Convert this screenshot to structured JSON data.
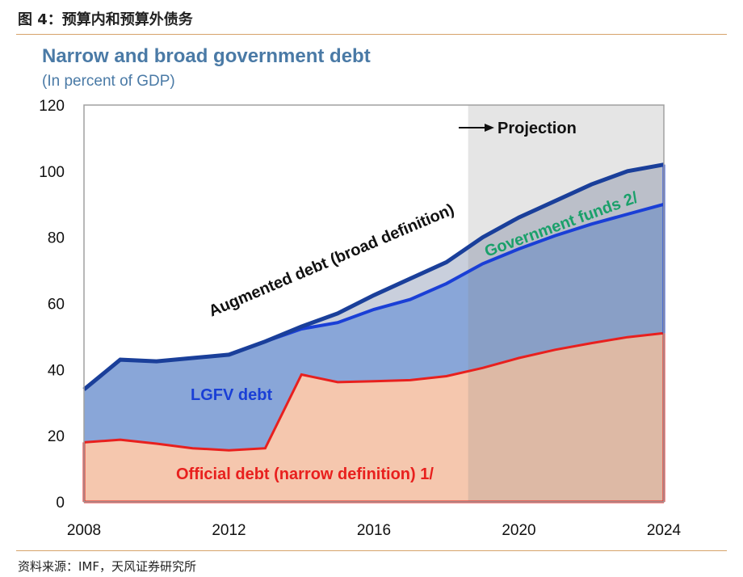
{
  "figure_header": "图 4：预算内和预算外债务",
  "source_note": "资料来源：IMF，天风证券研究所",
  "chart_data": {
    "type": "area",
    "title": "Narrow and broad government debt",
    "subtitle": "(In percent of GDP)",
    "x": [
      2008,
      2009,
      2010,
      2011,
      2012,
      2013,
      2014,
      2015,
      2016,
      2017,
      2018,
      2019,
      2020,
      2021,
      2022,
      2023,
      2024
    ],
    "x_ticks": [
      "2008",
      "2012",
      "2016",
      "2020",
      "2024"
    ],
    "y_ticks": [
      "0",
      "20",
      "40",
      "60",
      "80",
      "100",
      "120"
    ],
    "ylim": [
      0,
      120
    ],
    "xlim": [
      2008,
      2024
    ],
    "projection_start": 2018.6,
    "projection_label": "Projection",
    "series": [
      {
        "name": "Official debt (narrow definition) 1/",
        "color": "#e8201e",
        "fill": "#f5c7ae",
        "values": [
          18,
          18.8,
          17.6,
          16.2,
          15.6,
          16.2,
          38.5,
          36.2,
          36.5,
          36.8,
          38,
          40.5,
          43.5,
          46,
          48,
          49.8,
          51
        ]
      },
      {
        "name": "LGFV debt",
        "color": "#1a3fd6",
        "fill": "#89a6d8",
        "values": [
          34,
          43,
          42.5,
          43.5,
          44.5,
          48.5,
          52.3,
          54.2,
          58.2,
          61.2,
          66,
          72,
          76.5,
          80.5,
          84,
          87,
          90
        ]
      },
      {
        "name": "Government funds 2/",
        "color": "#1aa06a",
        "fill": "#c9cfdc",
        "values": [
          34,
          43,
          42.5,
          43.5,
          44.5,
          48.5,
          53,
          57,
          62.5,
          67.5,
          72.5,
          80,
          86,
          91,
          96,
          100,
          102
        ]
      },
      {
        "name": "Augmented debt  (broad definition)",
        "color": "#1a3f9a",
        "values": [
          34,
          43,
          42.5,
          43.5,
          44.5,
          48.5,
          53,
          57,
          62.5,
          67.5,
          72.5,
          80,
          86,
          91,
          96,
          100,
          102
        ]
      }
    ],
    "grid": false,
    "legend": "inline labels"
  }
}
